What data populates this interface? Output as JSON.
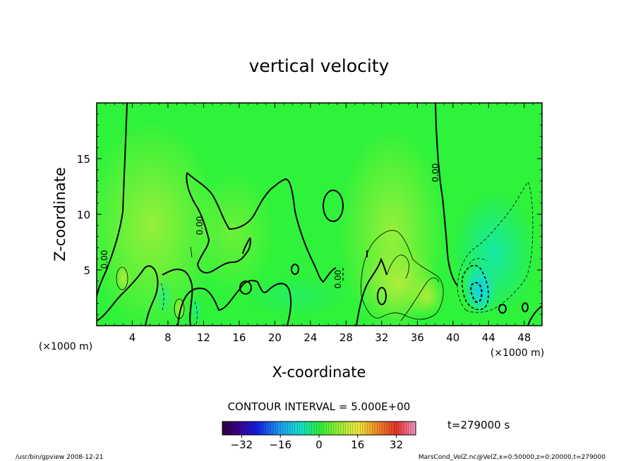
{
  "chart_data": {
    "type": "heatmap",
    "title": "vertical velocity",
    "xlabel": "X-coordinate",
    "ylabel": "Z-coordinate",
    "x_unit": "(×1000 m)",
    "y_unit": "(×1000 m)",
    "xlim": [
      0,
      50
    ],
    "ylim": [
      0,
      20
    ],
    "x_ticks": [
      4,
      8,
      12,
      16,
      20,
      24,
      28,
      32,
      36,
      40,
      44,
      48
    ],
    "y_ticks": [
      5,
      10,
      15
    ],
    "contour_interval_text": "CONTOUR INTERVAL = 5.000E+00",
    "contour_labels": [
      "0.00",
      "0.00",
      "0.00",
      "0.00"
    ],
    "colorbar": {
      "min": -40,
      "max": 40,
      "ticks": [
        -32,
        -16,
        0,
        16,
        32
      ]
    },
    "time_label": "t=279000  s",
    "field_summary": "mostly near-zero field (green); weak positive updrafts near x=4-6 km, x=30-38 km (z=1-7 km); negative downdraft near x=41-44 km, z=1-5 km (about -15)"
  },
  "footer": {
    "left": "/usr/bin/gpview   2008-12-21",
    "right": "MarsCond_VelZ.nc@VelZ,x=0:50000,z=0:20000,t=279000"
  },
  "colors": {
    "background_field": "#2ff23a",
    "positive_weak": "#8ef235",
    "negative_weak": "#18e8a0",
    "negative_strong": "#10d8e8",
    "contour": "#000000"
  }
}
